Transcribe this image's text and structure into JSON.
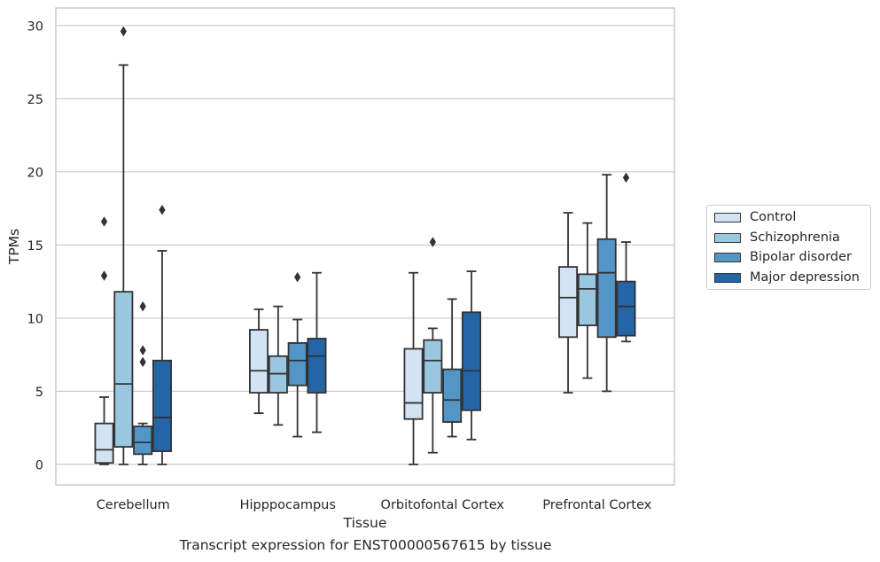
{
  "caption": "Transcript expression for ENST00000567615 by tissue",
  "colors": {
    "Control": "#d2e3f3",
    "Schizophrenia": "#9ac7e0",
    "Bipolar disorder": "#5296c7",
    "Major depression": "#2465a8",
    "box_edge": "#333333",
    "grid": "#cccccc"
  },
  "chart_data": {
    "type": "box",
    "xlabel": "Tissue",
    "ylabel": "TPMs",
    "ylim": [
      -1.4,
      31.2
    ],
    "yticks": [
      0,
      5,
      10,
      15,
      20,
      25,
      30
    ],
    "grid": "horizontal",
    "legend_position": "right",
    "categories": [
      "Cerebellum",
      "Hipppocampus",
      "Orbitofontal Cortex",
      "Prefrontal Cortex"
    ],
    "series": [
      {
        "name": "Control",
        "boxes": [
          {
            "whisker_low": 0.0,
            "q1": 0.1,
            "median": 1.0,
            "q3": 2.8,
            "whisker_high": 4.6,
            "outliers": [
              12.9,
              16.6
            ]
          },
          {
            "whisker_low": 3.5,
            "q1": 4.9,
            "median": 6.4,
            "q3": 9.2,
            "whisker_high": 10.6,
            "outliers": []
          },
          {
            "whisker_low": 0.0,
            "q1": 3.1,
            "median": 4.2,
            "q3": 7.9,
            "whisker_high": 13.1,
            "outliers": []
          },
          {
            "whisker_low": 4.9,
            "q1": 8.7,
            "median": 11.4,
            "q3": 13.5,
            "whisker_high": 17.2,
            "outliers": []
          }
        ]
      },
      {
        "name": "Schizophrenia",
        "boxes": [
          {
            "whisker_low": 0.0,
            "q1": 1.2,
            "median": 5.5,
            "q3": 11.8,
            "whisker_high": 27.3,
            "outliers": [
              29.6
            ]
          },
          {
            "whisker_low": 2.7,
            "q1": 4.9,
            "median": 6.2,
            "q3": 7.4,
            "whisker_high": 10.8,
            "outliers": []
          },
          {
            "whisker_low": 0.8,
            "q1": 4.9,
            "median": 7.1,
            "q3": 8.5,
            "whisker_high": 9.3,
            "outliers": [
              15.2
            ]
          },
          {
            "whisker_low": 5.9,
            "q1": 9.5,
            "median": 12.0,
            "q3": 13.0,
            "whisker_high": 16.5,
            "outliers": []
          }
        ]
      },
      {
        "name": "Bipolar disorder",
        "boxes": [
          {
            "whisker_low": 0.0,
            "q1": 0.7,
            "median": 1.5,
            "q3": 2.6,
            "whisker_high": 2.8,
            "outliers": [
              7.0,
              7.8,
              10.8
            ]
          },
          {
            "whisker_low": 1.9,
            "q1": 5.4,
            "median": 7.1,
            "q3": 8.3,
            "whisker_high": 9.9,
            "outliers": [
              12.8
            ]
          },
          {
            "whisker_low": 1.9,
            "q1": 2.9,
            "median": 4.4,
            "q3": 6.5,
            "whisker_high": 11.3,
            "outliers": []
          },
          {
            "whisker_low": 5.0,
            "q1": 8.7,
            "median": 13.1,
            "q3": 15.4,
            "whisker_high": 19.8,
            "outliers": []
          }
        ]
      },
      {
        "name": "Major depression",
        "boxes": [
          {
            "whisker_low": 0.0,
            "q1": 0.9,
            "median": 3.2,
            "q3": 7.1,
            "whisker_high": 14.6,
            "outliers": [
              17.4
            ]
          },
          {
            "whisker_low": 2.2,
            "q1": 4.9,
            "median": 7.4,
            "q3": 8.6,
            "whisker_high": 13.1,
            "outliers": []
          },
          {
            "whisker_low": 1.7,
            "q1": 3.7,
            "median": 6.4,
            "q3": 10.4,
            "whisker_high": 13.2,
            "outliers": []
          },
          {
            "whisker_low": 8.4,
            "q1": 8.8,
            "median": 10.8,
            "q3": 12.5,
            "whisker_high": 15.2,
            "outliers": [
              19.6
            ]
          }
        ]
      }
    ]
  }
}
